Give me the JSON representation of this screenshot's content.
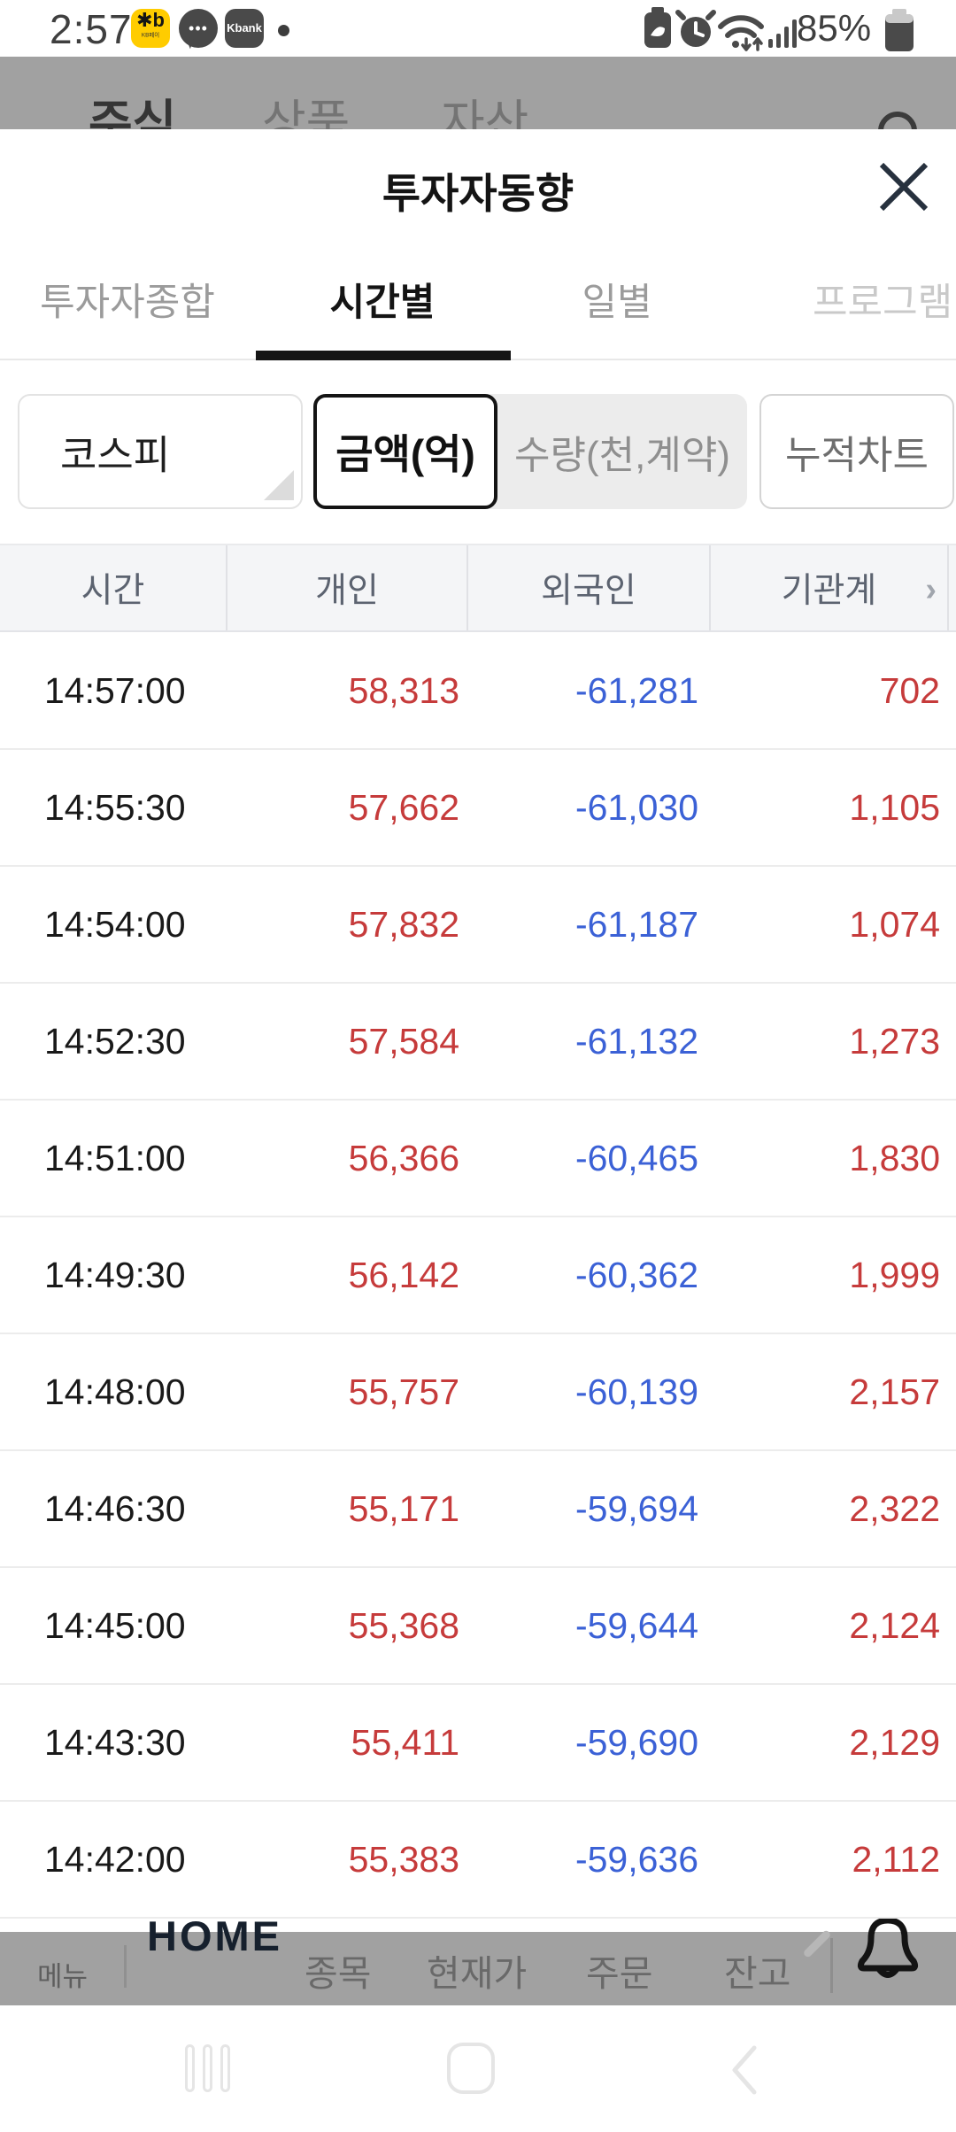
{
  "status_bar": {
    "time": "2:57",
    "battery_pct": "85%",
    "left_icons": [
      "kb-pay-app-icon",
      "kakaotalk-notification-icon",
      "kbank-app-icon",
      "more-notifications-dot"
    ],
    "right_icons": [
      "battery-saver-icon",
      "alarm-icon",
      "wifi-icon",
      "signal-icon",
      "battery-icon"
    ],
    "kbank_label": "Kbank",
    "kb_star": "✱b",
    "kb_sub": "KB페이",
    "chat_dots": "•••"
  },
  "background_app": {
    "header_tabs": {
      "stock": "주식",
      "products": "상품",
      "assets": "자산"
    },
    "bottom_nav": {
      "menu": "메뉴",
      "home": "HOME",
      "items": {
        "stock_item": "종목",
        "current_price": "현재가",
        "order": "주문",
        "balance": "잔고"
      }
    }
  },
  "modal": {
    "title": "투자자동향",
    "tabs": {
      "t1": {
        "label": "투자자종합",
        "active": false
      },
      "t2": {
        "label": "시간별",
        "active": true
      },
      "t3": {
        "label": "일별",
        "active": false
      },
      "t4": {
        "label": "프로그램",
        "active": false
      }
    },
    "filters": {
      "market_select": "코스피",
      "unit_amount": "금액(억)",
      "unit_amount_selected": true,
      "unit_quantity": "수량(천,계약)",
      "cumulative_chart": "누적차트"
    }
  },
  "table": {
    "headers": [
      "시간",
      "개인",
      "외국인",
      "기관계"
    ],
    "scroll_hint": "›",
    "rows": [
      [
        "14:57:00",
        "58,313",
        "-61,281",
        "702"
      ],
      [
        "14:55:30",
        "57,662",
        "-61,030",
        "1,105"
      ],
      [
        "14:54:00",
        "57,832",
        "-61,187",
        "1,074"
      ],
      [
        "14:52:30",
        "57,584",
        "-61,132",
        "1,273"
      ],
      [
        "14:51:00",
        "56,366",
        "-60,465",
        "1,830"
      ],
      [
        "14:49:30",
        "56,142",
        "-60,362",
        "1,999"
      ],
      [
        "14:48:00",
        "55,757",
        "-60,139",
        "2,157"
      ],
      [
        "14:46:30",
        "55,171",
        "-59,694",
        "2,322"
      ],
      [
        "14:45:00",
        "55,368",
        "-59,644",
        "2,124"
      ],
      [
        "14:43:30",
        "55,411",
        "-59,690",
        "2,129"
      ],
      [
        "14:42:00",
        "55,383",
        "-59,636",
        "2,112"
      ]
    ]
  },
  "colors": {
    "positive": "#c63b3b",
    "negative": "#3b61d6",
    "dim_overlay": "#a1a1a1",
    "tab_active": "#141414",
    "header_bg": "#f4f5f7"
  }
}
